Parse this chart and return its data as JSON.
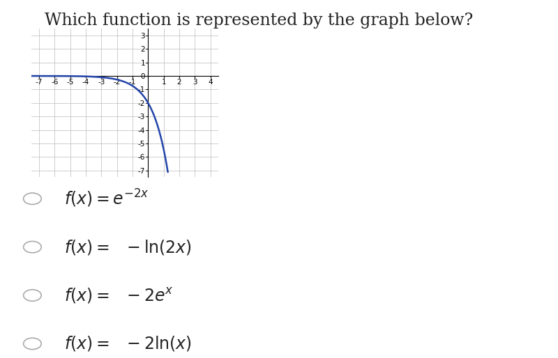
{
  "title": "Which function is represented by the graph below?",
  "title_fontsize": 17,
  "title_color": "#222222",
  "graph_xlim": [
    -7.5,
    4.5
  ],
  "graph_ylim": [
    -7.5,
    3.5
  ],
  "xticks": [
    -7,
    -6,
    -5,
    -4,
    -3,
    -2,
    -1,
    0,
    1,
    2,
    3,
    4
  ],
  "yticks": [
    -7,
    -6,
    -5,
    -4,
    -3,
    -2,
    -1,
    0,
    1,
    2,
    3
  ],
  "curve_color": "#2244aa",
  "curve_linewidth": 1.8,
  "background_color": "#ffffff",
  "grid_color": "#bbbbbb",
  "grid_linewidth": 0.5,
  "tick_fontsize": 7.5,
  "choice_fontsize": 17,
  "choices_latex": [
    "$f(x) = e^{-2x}$",
    "$f(x) = \\ -\\ln(2x)$",
    "$f(x) = \\ -2e^x$",
    "$f(x) = \\ -2\\ln(x)$"
  ]
}
